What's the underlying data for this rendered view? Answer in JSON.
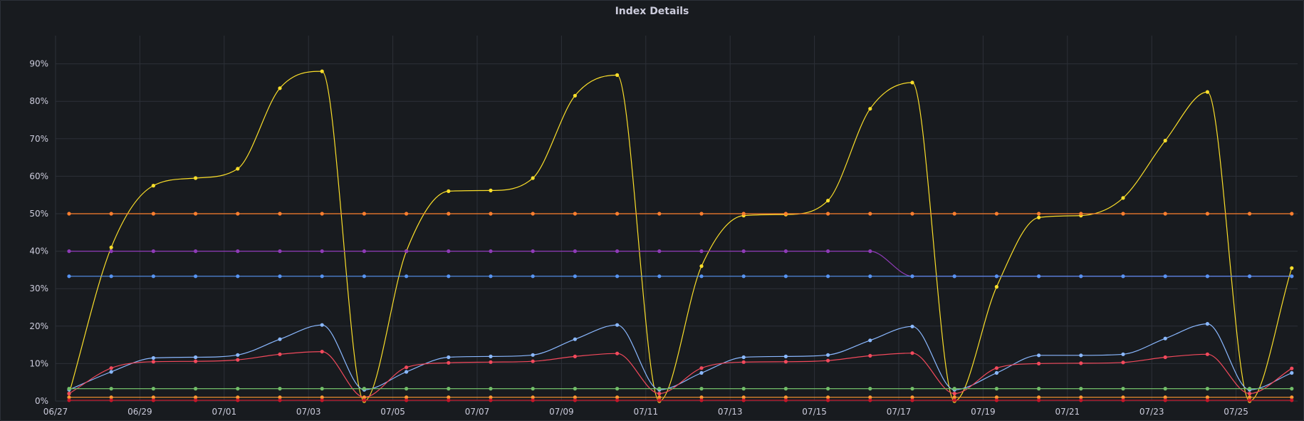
{
  "panel": {
    "title": "Index Details"
  },
  "chart_data": {
    "type": "line",
    "title": "Index Details",
    "xlabel": "",
    "ylabel": "",
    "ylim": [
      0,
      95
    ],
    "grid": true,
    "legend": "none",
    "x_tick_labels": [
      "06/27",
      "06/29",
      "07/01",
      "07/03",
      "07/05",
      "07/07",
      "07/09",
      "07/11",
      "07/13",
      "07/15",
      "07/17",
      "07/19",
      "07/21",
      "07/23",
      "07/25"
    ],
    "y_tick_labels": [
      "0%",
      "10%",
      "20%",
      "30%",
      "40%",
      "50%",
      "60%",
      "70%",
      "80%",
      "90%"
    ],
    "x_dates": [
      "06/27",
      "06/28",
      "06/29",
      "06/30",
      "07/01",
      "07/02",
      "07/03",
      "07/04",
      "07/05",
      "07/06",
      "07/07",
      "07/08",
      "07/09",
      "07/10",
      "07/11",
      "07/12",
      "07/13",
      "07/14",
      "07/15",
      "07/16",
      "07/17",
      "07/18",
      "07/19",
      "07/20",
      "07/21",
      "07/22",
      "07/23",
      "07/24",
      "07/25",
      "07/26"
    ],
    "series": [
      {
        "color": "#fade2a",
        "values": [
          2,
          41,
          57.5,
          59.5,
          62,
          83.5,
          88,
          0,
          40,
          56,
          56.2,
          59.5,
          81.5,
          87,
          0,
          36,
          49.5,
          49.8,
          53.5,
          78,
          85,
          0,
          30.5,
          49,
          49.5,
          54.2,
          69.5,
          82.5,
          0,
          35.5
        ]
      },
      {
        "color": "#ff7f2f",
        "values": [
          50,
          50,
          50,
          50,
          50,
          50,
          50,
          50,
          50,
          50,
          50,
          50,
          50,
          50,
          50,
          50,
          50,
          50,
          50,
          50,
          50,
          50,
          50,
          50,
          50,
          50,
          50,
          50,
          50,
          50
        ]
      },
      {
        "color": "#8f3bb8",
        "values": [
          40,
          40,
          40,
          40,
          40,
          40,
          40,
          40,
          40,
          40,
          40,
          40,
          40,
          40,
          40,
          40,
          40,
          40,
          40,
          40,
          33.3,
          33.3,
          33.3,
          33.3,
          33.3,
          33.3,
          33.3,
          33.3,
          33.3,
          33.3
        ]
      },
      {
        "color": "#5794f2",
        "values": [
          33.3,
          33.3,
          33.3,
          33.3,
          33.3,
          33.3,
          33.3,
          33.3,
          33.3,
          33.3,
          33.3,
          33.3,
          33.3,
          33.3,
          33.3,
          33.3,
          33.3,
          33.3,
          33.3,
          33.3,
          33.3,
          33.3,
          33.3,
          33.3,
          33.3,
          33.3,
          33.3,
          33.3,
          33.3,
          33.3
        ]
      },
      {
        "color": "#8ab8ff",
        "values": [
          3,
          7.8,
          11.5,
          11.7,
          12.3,
          16.5,
          20.3,
          3,
          7.8,
          11.7,
          11.9,
          12.3,
          16.5,
          20.3,
          3,
          7.5,
          11.7,
          11.9,
          12.3,
          16.2,
          19.9,
          3,
          7.5,
          12.2,
          12.2,
          12.5,
          16.7,
          20.6,
          3,
          7.5
        ]
      },
      {
        "color": "#f2495c",
        "values": [
          2,
          8.8,
          10.5,
          10.6,
          11,
          12.5,
          13.2,
          1,
          9,
          10.2,
          10.4,
          10.6,
          11.9,
          12.7,
          2,
          8.8,
          10.4,
          10.5,
          10.8,
          12.1,
          12.8,
          2,
          8.8,
          10,
          10.1,
          10.3,
          11.7,
          12.5,
          2,
          8.7
        ]
      },
      {
        "color": "#73bf69",
        "values": [
          3.3,
          3.3,
          3.3,
          3.3,
          3.3,
          3.3,
          3.3,
          3.3,
          3.3,
          3.3,
          3.3,
          3.3,
          3.3,
          3.3,
          3.3,
          3.3,
          3.3,
          3.3,
          3.3,
          3.3,
          3.3,
          3.3,
          3.3,
          3.3,
          3.3,
          3.3,
          3.3,
          3.3,
          3.3,
          3.3
        ]
      },
      {
        "color": "#ff9830",
        "values": [
          1,
          1,
          1,
          1,
          1,
          1,
          1,
          1,
          1,
          1,
          1,
          1,
          1,
          1,
          1,
          1,
          1,
          1,
          1,
          1,
          1,
          1,
          1,
          1,
          1,
          1,
          1,
          1,
          1,
          1
        ]
      },
      {
        "color": "#c4162a",
        "values": [
          0.2,
          0.2,
          0.2,
          0.2,
          0.2,
          0.2,
          0.2,
          0.2,
          0.2,
          0.2,
          0.2,
          0.2,
          0.2,
          0.2,
          0.2,
          0.2,
          0.2,
          0.2,
          0.2,
          0.2,
          0.2,
          0.2,
          0.2,
          0.2,
          0.2,
          0.2,
          0.2,
          0.2,
          0.2,
          0.2
        ]
      }
    ]
  }
}
